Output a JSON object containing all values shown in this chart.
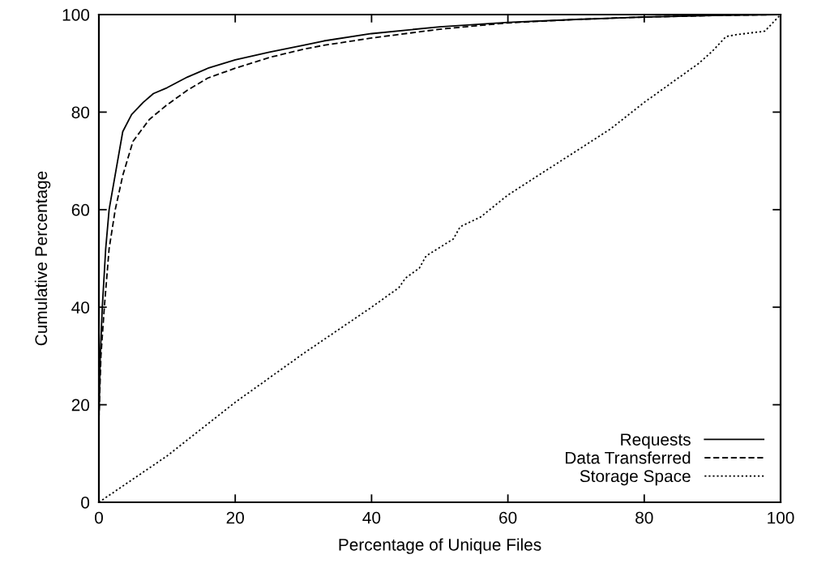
{
  "chart_data": {
    "type": "line",
    "xlabel": "Percentage of Unique Files",
    "ylabel": "Cumulative Percentage",
    "xlim": [
      0,
      100
    ],
    "ylim": [
      0,
      100
    ],
    "xticks": [
      0,
      20,
      40,
      60,
      80,
      100
    ],
    "yticks": [
      0,
      20,
      40,
      60,
      80,
      100
    ],
    "grid": false,
    "legend": "bottom right",
    "marker": "none",
    "series": [
      {
        "name": "Requests",
        "color": "#000000",
        "line_style": "solid",
        "x": [
          0,
          0.2,
          0.5,
          1,
          1.5,
          2.5,
          3.5,
          4.8,
          6.5,
          8,
          10,
          13,
          16,
          20,
          25,
          30,
          33,
          40,
          50,
          60,
          70,
          80,
          90,
          100
        ],
        "values": [
          17,
          30,
          40,
          52,
          60,
          68,
          76,
          79.5,
          82,
          83.8,
          85,
          87.2,
          89,
          90.7,
          92.3,
          93.7,
          94.6,
          96.1,
          97.5,
          98.4,
          99,
          99.5,
          99.8,
          100
        ]
      },
      {
        "name": "Data Transferred",
        "color": "#000000",
        "line_style": "dashed",
        "x": [
          0,
          0.3,
          0.8,
          1.5,
          2.4,
          3.5,
          5,
          7.4,
          10,
          13,
          16,
          20,
          25,
          30,
          33,
          40,
          50,
          60,
          70,
          80,
          90,
          100
        ],
        "values": [
          17,
          30,
          40,
          52,
          60,
          67,
          74,
          78.5,
          81.5,
          84.5,
          87,
          89,
          91.2,
          92.9,
          93.7,
          95.2,
          97,
          98.3,
          99,
          99.5,
          99.8,
          100
        ]
      },
      {
        "name": "Storage Space",
        "color": "#000000",
        "line_style": "dotted",
        "x": [
          0,
          10,
          20,
          30,
          40,
          44,
          45,
          47,
          48,
          52,
          53,
          56,
          60,
          65,
          70,
          75,
          80,
          84,
          88,
          90,
          92,
          93.6,
          97.7,
          100
        ],
        "values": [
          0,
          9.5,
          20.5,
          30.5,
          40,
          44,
          46,
          48,
          50.5,
          54,
          56.5,
          58.5,
          63,
          67.5,
          72,
          76.5,
          82,
          86,
          90,
          92.5,
          95.5,
          95.9,
          96.6,
          100
        ]
      }
    ]
  }
}
